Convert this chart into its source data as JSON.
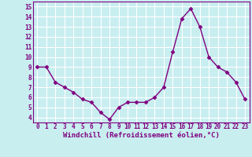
{
  "x": [
    0,
    1,
    2,
    3,
    4,
    5,
    6,
    7,
    8,
    9,
    10,
    11,
    12,
    13,
    14,
    15,
    16,
    17,
    18,
    19,
    20,
    21,
    22,
    23
  ],
  "y": [
    9.0,
    9.0,
    7.5,
    7.0,
    6.5,
    5.8,
    5.5,
    4.5,
    3.8,
    5.0,
    5.5,
    5.5,
    5.5,
    6.0,
    7.0,
    10.5,
    13.8,
    14.8,
    13.0,
    10.0,
    9.0,
    8.5,
    7.5,
    5.8
  ],
  "line_color": "#800080",
  "marker": "D",
  "marker_size": 2.5,
  "bg_color": "#c8eef0",
  "grid_color": "#ffffff",
  "xlabel": "Windchill (Refroidissement éolien,°C)",
  "xlabel_color": "#800080",
  "tick_color": "#800080",
  "ylim": [
    3.5,
    15.5
  ],
  "xlim": [
    -0.5,
    23.5
  ],
  "yticks": [
    4,
    5,
    6,
    7,
    8,
    9,
    10,
    11,
    12,
    13,
    14,
    15
  ],
  "xticks": [
    0,
    1,
    2,
    3,
    4,
    5,
    6,
    7,
    8,
    9,
    10,
    11,
    12,
    13,
    14,
    15,
    16,
    17,
    18,
    19,
    20,
    21,
    22,
    23
  ],
  "xtick_labels": [
    "0",
    "1",
    "2",
    "3",
    "4",
    "5",
    "6",
    "7",
    "8",
    "9",
    "10",
    "11",
    "12",
    "13",
    "14",
    "15",
    "16",
    "17",
    "18",
    "19",
    "20",
    "21",
    "22",
    "23"
  ],
  "ytick_labels": [
    "4",
    "5",
    "6",
    "7",
    "8",
    "9",
    "10",
    "11",
    "12",
    "13",
    "14",
    "15"
  ],
  "spine_color": "#800080",
  "font_family": "monospace",
  "linewidth": 1.0,
  "tick_fontsize": 5.5,
  "xlabel_fontsize": 6.5
}
